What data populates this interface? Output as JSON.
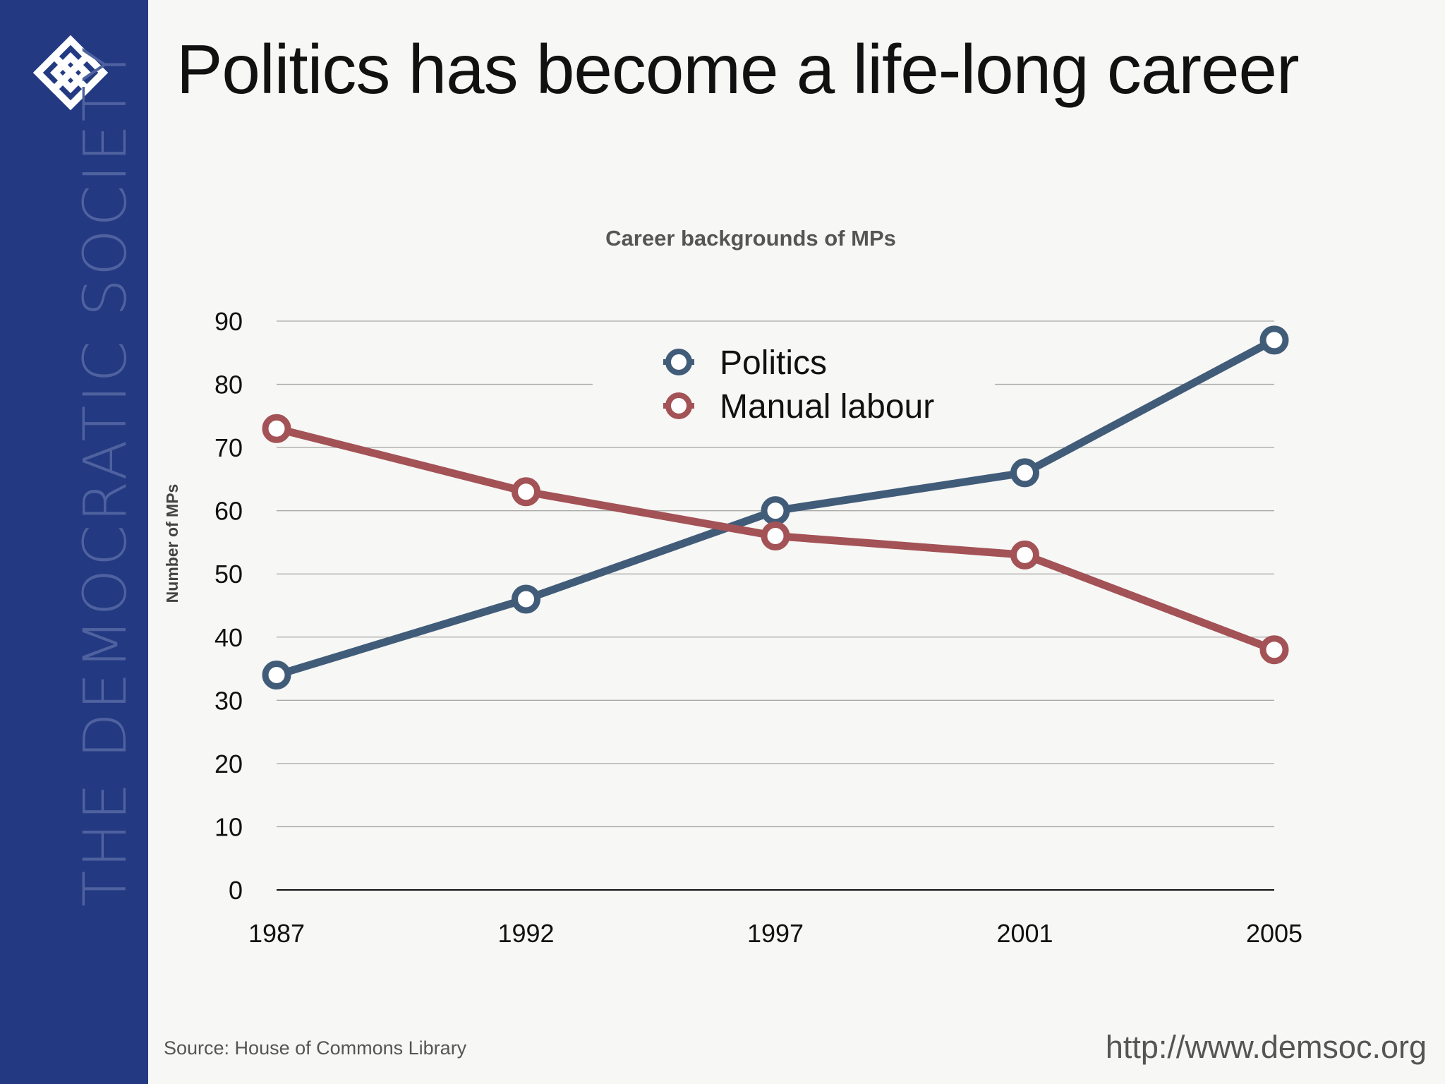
{
  "brand": {
    "name": "THE DEMOCRATIC SOCIETY",
    "logo_icon": "knot-lattice-icon",
    "sidebar_color": "#233a82",
    "brand_text_color": "#4f629f"
  },
  "page": {
    "title": "Politics has become a life-long career",
    "source": "Source: House of Commons Library",
    "url": "http://www.demsoc.org"
  },
  "chart_data": {
    "type": "line",
    "title": "Career backgrounds of MPs",
    "xlabel": "",
    "ylabel": "Number of MPs",
    "categories": [
      "1987",
      "1992",
      "1997",
      "2001",
      "2005"
    ],
    "yticks": [
      "0",
      "10",
      "20",
      "30",
      "40",
      "50",
      "60",
      "70",
      "80",
      "90"
    ],
    "ylim": [
      0,
      90
    ],
    "grid": true,
    "legend_position": "top-center",
    "series": [
      {
        "name": "Politics",
        "color": "#415c79",
        "values": [
          34,
          46,
          60,
          66,
          87
        ]
      },
      {
        "name": "Manual labour",
        "color": "#a35256",
        "values": [
          73,
          63,
          56,
          53,
          38
        ]
      }
    ]
  }
}
